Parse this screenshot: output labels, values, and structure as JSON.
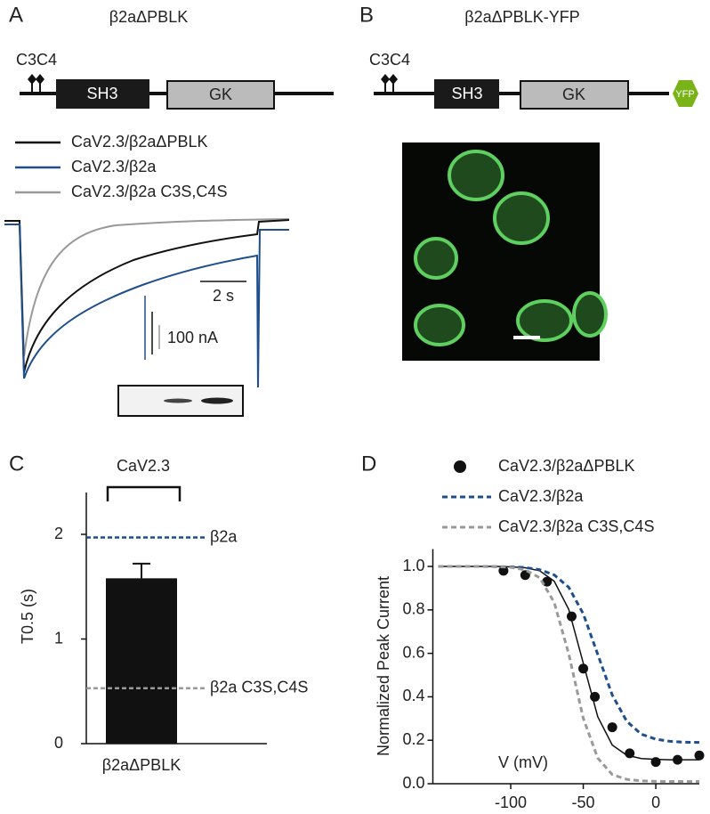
{
  "panels": [
    {
      "label": "A",
      "title": "β2aΔPBLK",
      "construct": {
        "site": "C3C4",
        "domains": [
          "SH3",
          "GK"
        ]
      },
      "legend": [
        {
          "name": "CaV2.3/β2aΔPBLK",
          "color": "#111111"
        },
        {
          "name": "CaV2.3/β2a",
          "color": "#1f4e8c"
        },
        {
          "name": "CaV2.3/β2a C3S,C4S",
          "color": "#999999"
        }
      ],
      "scale": {
        "time": "2 s",
        "current": "100 nA"
      }
    },
    {
      "label": "B",
      "title": "β2aΔPBLK-YFP",
      "construct": {
        "site": "C3C4",
        "domains": [
          "SH3",
          "GK",
          "YFP"
        ]
      }
    }
  ],
  "chart_data": [
    {
      "type": "bar",
      "panel_label": "C",
      "bracket_label": "CaV2.3",
      "categories": [
        "β2aΔPBLK"
      ],
      "values": [
        1.58
      ],
      "errors": [
        0.14
      ],
      "color": "#111111",
      "y_label": "T0.5 (s)",
      "ylim": [
        0,
        2.4
      ],
      "yticks": [
        0,
        1,
        2
      ],
      "reference_lines": [
        {
          "label": "β2a",
          "value": 1.97,
          "color": "#1f4e8c"
        },
        {
          "label": "β2a C3S,C4S",
          "value": 0.53,
          "color": "#999999"
        }
      ]
    },
    {
      "type": "line",
      "panel_label": "D",
      "x_label": "V (mV)",
      "y_label": "Normalized Peak Current",
      "xlim": [
        -150,
        30
      ],
      "xticks": [
        -100,
        -50,
        0
      ],
      "ylim": [
        0,
        1.08
      ],
      "yticks": [
        {
          "value": 0,
          "label": "0.0"
        },
        0.2,
        0.4,
        0.6,
        0.8,
        {
          "value": 1,
          "label": "1.0"
        }
      ],
      "series": [
        {
          "name": "CaV2.3/β2aΔPBLK",
          "color": "#111111",
          "marker": "dot",
          "x": [
            -105,
            -90,
            -75,
            -58,
            -50,
            -42,
            -30,
            -18,
            0,
            15,
            30
          ],
          "values": [
            0.98,
            0.96,
            0.93,
            0.77,
            0.53,
            0.4,
            0.26,
            0.14,
            0.1,
            0.11,
            0.13
          ]
        },
        {
          "name": "CaV2.3/β2a",
          "color": "#1f4e8c",
          "dash": true,
          "x": [
            -150,
            -140,
            -130,
            -120,
            -110,
            -100,
            -90,
            -80,
            -70,
            -60,
            -50,
            -40,
            -30,
            -20,
            -10,
            0,
            10,
            20,
            30
          ],
          "values": [
            1,
            1,
            1,
            1,
            0.999,
            0.998,
            0.995,
            0.985,
            0.961,
            0.904,
            0.782,
            0.595,
            0.408,
            0.287,
            0.228,
            0.205,
            0.195,
            0.191,
            0.19
          ]
        },
        {
          "name": "CaV2.3/β2a C3S,C4S",
          "color": "#999999",
          "dash": true,
          "x": [
            -150,
            -140,
            -130,
            -120,
            -110,
            -100,
            -90,
            -80,
            -70,
            -60,
            -50,
            -40,
            -30,
            -20,
            -10,
            0,
            10,
            20,
            30
          ],
          "values": [
            1,
            1,
            1,
            1,
            0.999,
            0.996,
            0.984,
            0.948,
            0.834,
            0.597,
            0.301,
            0.118,
            0.042,
            0.02,
            0.013,
            0.011,
            0.01,
            0.01,
            0.01
          ]
        }
      ],
      "fit": {
        "color": "#111111",
        "x": [
          -150,
          -140,
          -130,
          -120,
          -110,
          -100,
          -90,
          -80,
          -70,
          -60,
          -50,
          -40,
          -30,
          -20,
          -10,
          0,
          10,
          20,
          30
        ],
        "values": [
          1,
          1,
          1,
          1,
          1,
          0.998,
          0.994,
          0.98,
          0.932,
          0.802,
          0.555,
          0.308,
          0.178,
          0.131,
          0.116,
          0.112,
          0.11,
          0.11,
          0.11
        ]
      }
    }
  ]
}
